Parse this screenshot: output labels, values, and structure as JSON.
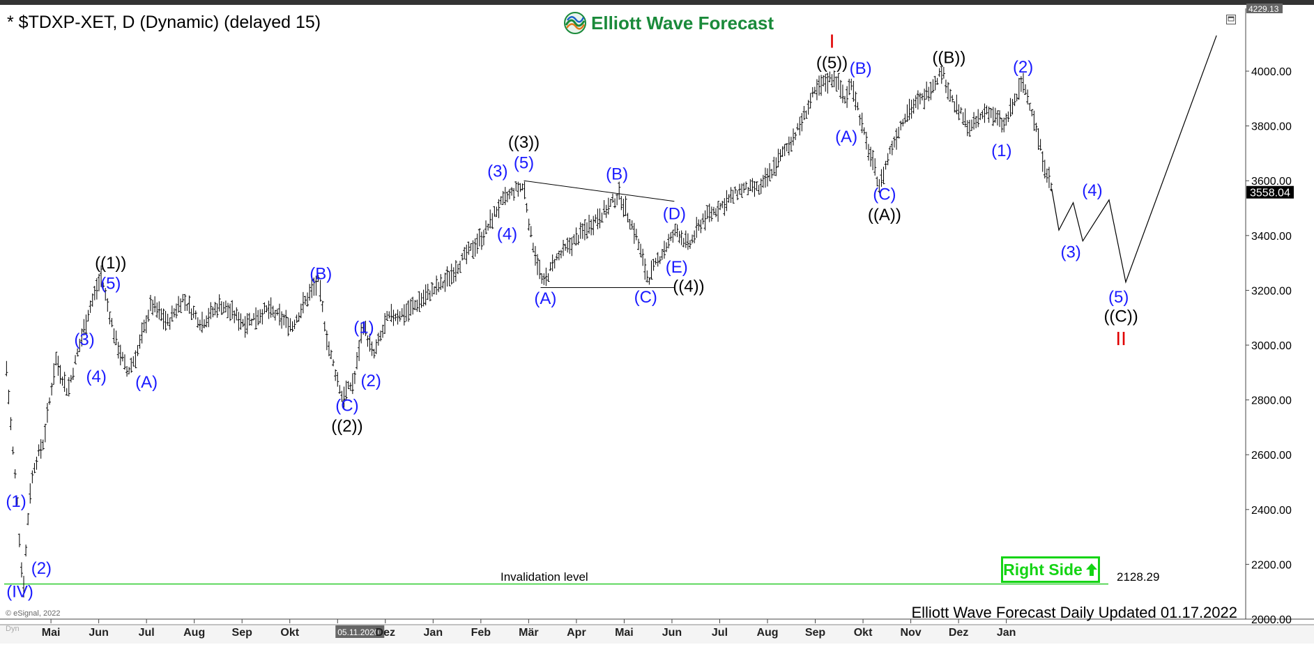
{
  "header": {
    "title": "* $TDXP-XET, D (Dynamic) (delayed 15)",
    "brand_name": "Elliott Wave Forecast",
    "footer": "Elliott Wave Forecast Daily Updated 01.17.2022",
    "esignal": "© eSignal, 2022",
    "dyn_tag": "Dyn"
  },
  "colors": {
    "wave_label": "#1a1aff",
    "degree_label": "#000000",
    "major_label": "#e00000",
    "invalidation_line": "#2ecc2e",
    "right_side": "#14d414",
    "brand_green": "#1a8a3a"
  },
  "icons": [
    "expand-icon",
    "logo-icon",
    "up-arrow-icon"
  ],
  "chart_data": {
    "type": "ohlc",
    "title": "* $TDXP-XET, D (Dynamic) (delayed 15)",
    "x_ticks": [
      {
        "t": 1,
        "label": "Mai"
      },
      {
        "t": 2,
        "label": "Jun"
      },
      {
        "t": 3,
        "label": "Jul"
      },
      {
        "t": 4,
        "label": "Aug"
      },
      {
        "t": 5,
        "label": "Sep"
      },
      {
        "t": 6,
        "label": "Okt"
      },
      {
        "t": 7,
        "label": "05.11.2020"
      },
      {
        "t": 8,
        "label": "Dez"
      },
      {
        "t": 9,
        "label": "Jan"
      },
      {
        "t": 10,
        "label": "Feb"
      },
      {
        "t": 11,
        "label": "Mär"
      },
      {
        "t": 12,
        "label": "Apr"
      },
      {
        "t": 13,
        "label": "Mai"
      },
      {
        "t": 14,
        "label": "Jun"
      },
      {
        "t": 15,
        "label": "Jul"
      },
      {
        "t": 16,
        "label": "Aug"
      },
      {
        "t": 17,
        "label": "Sep"
      },
      {
        "t": 18,
        "label": "Okt"
      },
      {
        "t": 19,
        "label": "Nov"
      },
      {
        "t": 20,
        "label": "Dez"
      },
      {
        "t": 21,
        "label": "Jan"
      }
    ],
    "y_ticks": [
      "2000.00",
      "2200.00",
      "2400.00",
      "2600.00",
      "2800.00",
      "3000.00",
      "3200.00",
      "3400.00",
      "3600.00",
      "3800.00",
      "4000.00"
    ],
    "ylim": [
      2000,
      4229.13
    ],
    "xlim": [
      0,
      25.6
    ],
    "top_value": "4229.13",
    "last_price": "3558.04",
    "invalidation": {
      "value": 2128.29,
      "label": "Invalidation level",
      "value_label": "2128.29"
    },
    "price_path": [
      [
        0.0,
        2960
      ],
      [
        0.15,
        2620
      ],
      [
        0.25,
        2430
      ],
      [
        0.32,
        2200
      ],
      [
        0.38,
        2128.29
      ],
      [
        0.5,
        2450
      ],
      [
        0.6,
        2560
      ],
      [
        0.8,
        2650
      ],
      [
        1.05,
        2950
      ],
      [
        1.3,
        2830
      ],
      [
        1.55,
        3000
      ],
      [
        1.75,
        3130
      ],
      [
        2.0,
        3250
      ],
      [
        2.3,
        3020
      ],
      [
        2.55,
        2900
      ],
      [
        2.75,
        2970
      ],
      [
        3.05,
        3150
      ],
      [
        3.4,
        3080
      ],
      [
        3.7,
        3170
      ],
      [
        4.1,
        3080
      ],
      [
        4.5,
        3150
      ],
      [
        5.0,
        3080
      ],
      [
        5.5,
        3130
      ],
      [
        6.0,
        3070
      ],
      [
        6.4,
        3200
      ],
      [
        6.55,
        3230
      ],
      [
        6.75,
        3000
      ],
      [
        7.05,
        2810
      ],
      [
        7.3,
        2870
      ],
      [
        7.48,
        3080
      ],
      [
        7.7,
        2960
      ],
      [
        8.0,
        3100
      ],
      [
        8.4,
        3120
      ],
      [
        8.8,
        3180
      ],
      [
        9.2,
        3230
      ],
      [
        9.6,
        3320
      ],
      [
        10.0,
        3400
      ],
      [
        10.3,
        3500
      ],
      [
        10.5,
        3540
      ],
      [
        10.7,
        3570
      ],
      [
        10.85,
        3580
      ],
      [
        11.0,
        3400
      ],
      [
        11.25,
        3220
      ],
      [
        11.5,
        3310
      ],
      [
        11.9,
        3380
      ],
      [
        12.3,
        3450
      ],
      [
        12.6,
        3500
      ],
      [
        12.85,
        3550
      ],
      [
        13.2,
        3400
      ],
      [
        13.45,
        3240
      ],
      [
        13.75,
        3340
      ],
      [
        14.05,
        3420
      ],
      [
        14.3,
        3360
      ],
      [
        14.6,
        3460
      ],
      [
        15.0,
        3510
      ],
      [
        15.4,
        3570
      ],
      [
        15.8,
        3570
      ],
      [
        16.2,
        3680
      ],
      [
        16.6,
        3790
      ],
      [
        16.9,
        3910
      ],
      [
        17.15,
        3960
      ],
      [
        17.35,
        3980
      ],
      [
        17.6,
        3890
      ],
      [
        17.7,
        3970
      ],
      [
        18.0,
        3750
      ],
      [
        18.3,
        3580
      ],
      [
        18.5,
        3700
      ],
      [
        18.85,
        3850
      ],
      [
        19.2,
        3900
      ],
      [
        19.6,
        4000
      ],
      [
        19.85,
        3880
      ],
      [
        20.2,
        3790
      ],
      [
        20.55,
        3860
      ],
      [
        20.9,
        3800
      ],
      [
        21.15,
        3900
      ],
      [
        21.3,
        3960
      ],
      [
        21.5,
        3850
      ],
      [
        21.7,
        3690
      ],
      [
        21.9,
        3570
      ]
    ],
    "projection": [
      [
        21.9,
        3570
      ],
      [
        22.05,
        3420
      ],
      [
        22.35,
        3520
      ],
      [
        22.55,
        3380
      ],
      [
        23.1,
        3530
      ],
      [
        23.45,
        3230
      ],
      [
        25.35,
        4130
      ]
    ],
    "triangle_lines": [
      [
        [
          10.85,
          3600
        ],
        [
          14.0,
          3525
        ]
      ],
      [
        [
          11.2,
          3210
        ],
        [
          14.0,
          3210
        ]
      ]
    ],
    "wave_labels": [
      {
        "t": 0.22,
        "v": 2410,
        "text": "(1)",
        "kind": "wave"
      },
      {
        "t": 0.75,
        "v": 2165,
        "text": "(2)",
        "kind": "wave"
      },
      {
        "t": 0.3,
        "v": 2080,
        "text": "(IV)",
        "kind": "wave"
      },
      {
        "t": 2.2,
        "v": 3280,
        "text": "((1))",
        "kind": "degree"
      },
      {
        "t": 2.2,
        "v": 3205,
        "text": "(5)",
        "kind": "wave"
      },
      {
        "t": 1.65,
        "v": 3000,
        "text": "(3)",
        "kind": "wave"
      },
      {
        "t": 1.9,
        "v": 2865,
        "text": "(4)",
        "kind": "wave"
      },
      {
        "t": 2.95,
        "v": 2845,
        "text": "(A)",
        "kind": "wave"
      },
      {
        "t": 6.6,
        "v": 3240,
        "text": "(B)",
        "kind": "wave"
      },
      {
        "t": 7.15,
        "v": 2760,
        "text": "(C)",
        "kind": "wave"
      },
      {
        "t": 7.15,
        "v": 2685,
        "text": "((2))",
        "kind": "degree"
      },
      {
        "t": 7.5,
        "v": 3045,
        "text": "(1)",
        "kind": "wave"
      },
      {
        "t": 7.65,
        "v": 2850,
        "text": "(2)",
        "kind": "wave"
      },
      {
        "t": 10.3,
        "v": 3615,
        "text": "(3)",
        "kind": "wave"
      },
      {
        "t": 10.5,
        "v": 3385,
        "text": "(4)",
        "kind": "wave"
      },
      {
        "t": 10.85,
        "v": 3645,
        "text": "(5)",
        "kind": "wave"
      },
      {
        "t": 10.85,
        "v": 3720,
        "text": "((3))",
        "kind": "degree"
      },
      {
        "t": 11.3,
        "v": 3150,
        "text": "(A)",
        "kind": "wave"
      },
      {
        "t": 12.8,
        "v": 3605,
        "text": "(B)",
        "kind": "wave"
      },
      {
        "t": 13.4,
        "v": 3155,
        "text": "(C)",
        "kind": "wave"
      },
      {
        "t": 14.0,
        "v": 3460,
        "text": "(D)",
        "kind": "wave"
      },
      {
        "t": 14.05,
        "v": 3265,
        "text": "(E)",
        "kind": "wave"
      },
      {
        "t": 14.3,
        "v": 3195,
        "text": "((4))",
        "kind": "degree"
      },
      {
        "t": 17.3,
        "v": 4085,
        "text": "I",
        "kind": "major"
      },
      {
        "t": 17.3,
        "v": 4010,
        "text": "((5))",
        "kind": "degree"
      },
      {
        "t": 17.9,
        "v": 3990,
        "text": "(B)",
        "kind": "wave"
      },
      {
        "t": 17.6,
        "v": 3740,
        "text": "(A)",
        "kind": "wave"
      },
      {
        "t": 18.4,
        "v": 3530,
        "text": "(C)",
        "kind": "wave"
      },
      {
        "t": 18.4,
        "v": 3455,
        "text": "((A))",
        "kind": "degree"
      },
      {
        "t": 19.75,
        "v": 4030,
        "text": "((B))",
        "kind": "degree"
      },
      {
        "t": 20.85,
        "v": 3690,
        "text": "(1)",
        "kind": "wave"
      },
      {
        "t": 21.3,
        "v": 3995,
        "text": "(2)",
        "kind": "wave"
      },
      {
        "t": 22.3,
        "v": 3320,
        "text": "(3)",
        "kind": "wave"
      },
      {
        "t": 22.75,
        "v": 3545,
        "text": "(4)",
        "kind": "wave"
      },
      {
        "t": 23.3,
        "v": 3155,
        "text": "(5)",
        "kind": "wave"
      },
      {
        "t": 23.35,
        "v": 3085,
        "text": "((C))",
        "kind": "degree"
      },
      {
        "t": 23.35,
        "v": 3000,
        "text": "II",
        "kind": "major"
      }
    ]
  },
  "right_side_badge": "Right Side"
}
